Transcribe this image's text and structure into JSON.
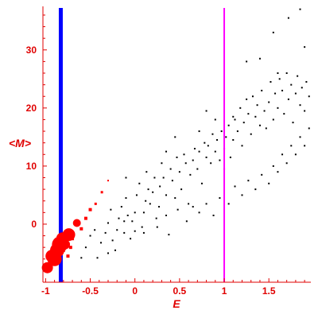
{
  "chart_data": {
    "type": "scatter",
    "xlabel": "E",
    "ylabel": "<M>",
    "xlim": [
      -1.03,
      1.97
    ],
    "ylim": [
      -10,
      37.5
    ],
    "x_ticks": [
      -1,
      -0.5,
      0,
      0.5,
      1,
      1.5
    ],
    "y_ticks": [
      0,
      10,
      20,
      30
    ],
    "x_tick_labels": [
      "-1",
      "-0.5",
      "0",
      "0.5",
      "1",
      "1.5"
    ],
    "y_tick_labels": [
      "0",
      "10",
      "20",
      "30"
    ],
    "grid": false,
    "vertical_lines": [
      {
        "x": -0.83,
        "color": "#0000ff"
      },
      {
        "x": 1.0,
        "color": "#ff00ff"
      }
    ],
    "series": [
      {
        "color": "#000000",
        "style": "small-dots",
        "points": [
          [
            -0.6,
            -5.8
          ],
          [
            -0.55,
            -4.0
          ],
          [
            -0.5,
            -2.0
          ],
          [
            -0.45,
            -1.0
          ],
          [
            -0.42,
            -5.8
          ],
          [
            -0.38,
            -3.2
          ],
          [
            -0.33,
            -1.5
          ],
          [
            -0.3,
            0.2
          ],
          [
            -0.27,
            2.5
          ],
          [
            -0.22,
            -4.5
          ],
          [
            -0.2,
            -1.0
          ],
          [
            -0.18,
            1.0
          ],
          [
            -0.15,
            3.0
          ],
          [
            -0.12,
            -1.5
          ],
          [
            -0.1,
            4.5
          ],
          [
            -0.08,
            1.5
          ],
          [
            -0.05,
            -2.5
          ],
          [
            -0.03,
            0.5
          ],
          [
            0.0,
            2.0
          ],
          [
            0.02,
            5.0
          ],
          [
            0.05,
            7.0
          ],
          [
            0.08,
            -0.5
          ],
          [
            0.1,
            2.0
          ],
          [
            0.12,
            4.0
          ],
          [
            0.13,
            9.0
          ],
          [
            0.15,
            6.0
          ],
          [
            0.17,
            3.5
          ],
          [
            0.2,
            5.5
          ],
          [
            0.22,
            8.0
          ],
          [
            0.24,
            1.0
          ],
          [
            0.27,
            3.0
          ],
          [
            0.28,
            6.5
          ],
          [
            0.3,
            10.5
          ],
          [
            0.32,
            8.0
          ],
          [
            0.35,
            5.0
          ],
          [
            0.38,
            -1.8
          ],
          [
            0.4,
            9.5
          ],
          [
            0.42,
            7.5
          ],
          [
            0.45,
            4.5
          ],
          [
            0.47,
            11.5
          ],
          [
            0.5,
            9.0
          ],
          [
            0.52,
            6.0
          ],
          [
            0.55,
            12.0
          ],
          [
            0.57,
            10.5
          ],
          [
            0.6,
            3.5
          ],
          [
            0.62,
            8.5
          ],
          [
            0.65,
            11.0
          ],
          [
            0.67,
            13.0
          ],
          [
            0.7,
            9.5
          ],
          [
            0.72,
            12.5
          ],
          [
            0.75,
            7.0
          ],
          [
            0.78,
            14.0
          ],
          [
            0.8,
            11.5
          ],
          [
            0.82,
            13.5
          ],
          [
            0.85,
            10.5
          ],
          [
            0.87,
            15.5
          ],
          [
            0.9,
            12.5
          ],
          [
            0.92,
            14.5
          ],
          [
            0.95,
            11.0
          ],
          [
            0.97,
            16.0
          ],
          [
            1.0,
            13.0
          ],
          [
            1.02,
            15.0
          ],
          [
            1.05,
            17.0
          ],
          [
            1.07,
            11.5
          ],
          [
            1.1,
            14.5
          ],
          [
            1.12,
            18.0
          ],
          [
            1.15,
            16.0
          ],
          [
            1.18,
            20.0
          ],
          [
            1.2,
            13.5
          ],
          [
            1.22,
            17.5
          ],
          [
            1.25,
            21.5
          ],
          [
            1.27,
            19.0
          ],
          [
            1.3,
            15.5
          ],
          [
            1.32,
            22.0
          ],
          [
            1.35,
            18.5
          ],
          [
            1.37,
            20.5
          ],
          [
            1.4,
            17.0
          ],
          [
            1.42,
            23.0
          ],
          [
            1.45,
            19.5
          ],
          [
            1.47,
            16.5
          ],
          [
            1.5,
            21.0
          ],
          [
            1.52,
            24.5
          ],
          [
            1.55,
            18.0
          ],
          [
            1.57,
            22.5
          ],
          [
            1.6,
            20.0
          ],
          [
            1.62,
            25.0
          ],
          [
            1.65,
            23.0
          ],
          [
            1.67,
            19.0
          ],
          [
            1.7,
            26.0
          ],
          [
            1.72,
            21.5
          ],
          [
            1.75,
            24.0
          ],
          [
            1.77,
            17.5
          ],
          [
            1.8,
            22.5
          ],
          [
            1.82,
            25.5
          ],
          [
            1.85,
            20.5
          ],
          [
            1.87,
            23.5
          ],
          [
            1.9,
            19.5
          ],
          [
            1.92,
            24.5
          ],
          [
            1.95,
            22.0
          ],
          [
            -0.3,
            -5.0
          ],
          [
            -0.25,
            -2.8
          ],
          [
            -0.12,
            0.5
          ],
          [
            0.0,
            -1.2
          ],
          [
            0.1,
            -1.5
          ],
          [
            0.25,
            -0.5
          ],
          [
            0.35,
            1.5
          ],
          [
            0.48,
            2.5
          ],
          [
            0.58,
            0.5
          ],
          [
            0.65,
            3.0
          ],
          [
            0.72,
            2.0
          ],
          [
            0.8,
            3.5
          ],
          [
            0.88,
            1.5
          ],
          [
            0.95,
            4.5
          ],
          [
            1.05,
            3.5
          ],
          [
            1.12,
            6.5
          ],
          [
            1.2,
            5.0
          ],
          [
            1.27,
            7.5
          ],
          [
            1.35,
            6.0
          ],
          [
            1.42,
            8.5
          ],
          [
            1.5,
            7.0
          ],
          [
            1.55,
            10.0
          ],
          [
            1.6,
            9.0
          ],
          [
            1.65,
            12.0
          ],
          [
            1.7,
            10.5
          ],
          [
            1.75,
            13.5
          ],
          [
            1.8,
            12.0
          ],
          [
            1.85,
            15.0
          ],
          [
            1.9,
            13.5
          ],
          [
            1.95,
            16.5
          ],
          [
            0.45,
            15.0
          ],
          [
            0.8,
            19.5
          ],
          [
            0.9,
            18.0
          ],
          [
            1.1,
            18.5
          ],
          [
            1.25,
            28.0
          ],
          [
            1.4,
            28.5
          ],
          [
            1.55,
            33.0
          ],
          [
            1.72,
            35.5
          ],
          [
            1.85,
            37.0
          ],
          [
            1.9,
            30.5
          ],
          [
            1.6,
            26.0
          ],
          [
            1.0,
            9.5
          ],
          [
            0.72,
            16.0
          ],
          [
            0.35,
            12.5
          ],
          [
            -0.1,
            8.0
          ]
        ]
      },
      {
        "color": "#ff0000",
        "style": "red-markers",
        "points": [
          [
            -0.98,
            -7.5
          ],
          [
            -0.93,
            -5.5
          ],
          [
            -0.9,
            -6.0
          ],
          [
            -0.87,
            -4.5
          ],
          [
            -0.84,
            -3.5
          ],
          [
            -0.81,
            -2.5
          ],
          [
            -0.78,
            -3.5
          ],
          [
            -0.74,
            -1.8
          ],
          [
            -0.7,
            -2.5
          ],
          [
            -0.65,
            0.2
          ],
          [
            -0.6,
            -0.8
          ],
          [
            -0.55,
            1.0
          ],
          [
            -0.5,
            2.5
          ],
          [
            -0.44,
            3.5
          ],
          [
            -0.37,
            5.5
          ],
          [
            -0.3,
            7.5
          ],
          [
            -0.85,
            -5.0
          ],
          [
            -0.8,
            -4.5
          ],
          [
            -0.75,
            -5.5
          ],
          [
            -0.72,
            -4.0
          ]
        ],
        "sizes": [
          7,
          8,
          9,
          9,
          10,
          8,
          6,
          8,
          2,
          5,
          2,
          2,
          2,
          1.5,
          1.5,
          1,
          2,
          2,
          2,
          2
        ]
      }
    ]
  }
}
